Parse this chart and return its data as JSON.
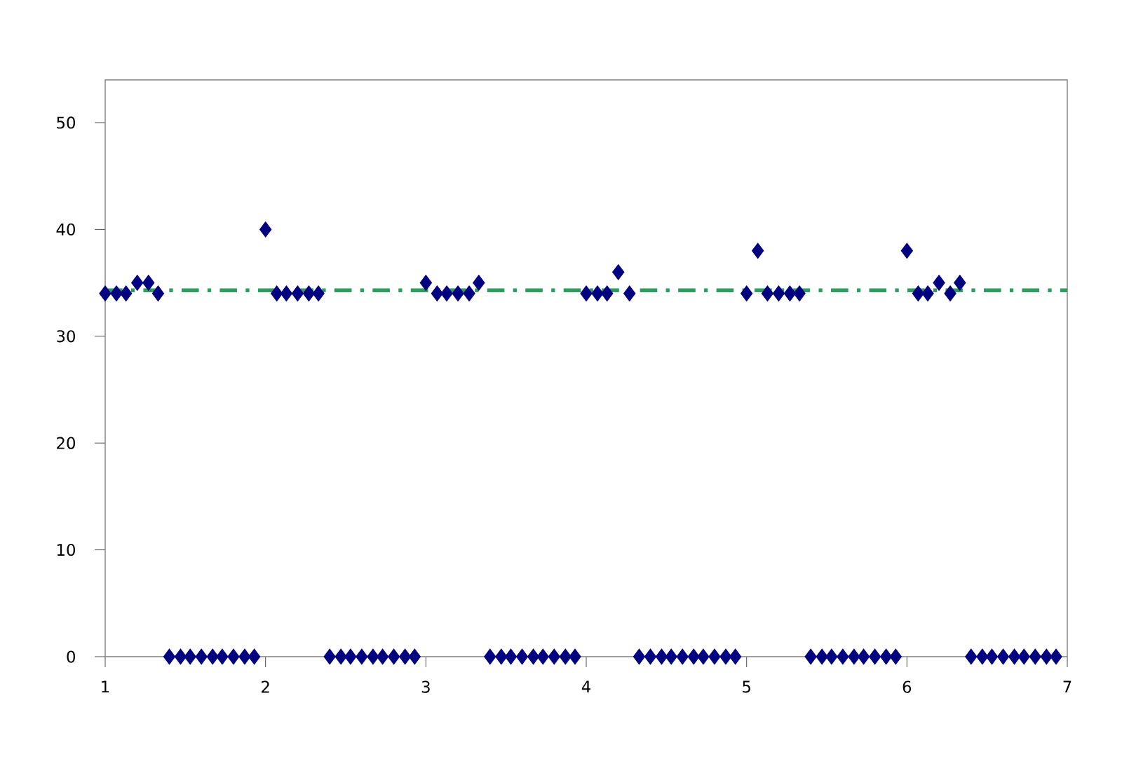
{
  "chart_data": {
    "type": "scatter",
    "series": [
      {
        "color": "#000080",
        "x": [
          1.0,
          1.07,
          1.13,
          1.2,
          1.27,
          1.33,
          1.4,
          1.47,
          1.53,
          1.6,
          1.67,
          1.73,
          1.8,
          1.87,
          1.93,
          2.0,
          2.07,
          2.13,
          2.2,
          2.27,
          2.33,
          2.4,
          2.47,
          2.53,
          2.6,
          2.67,
          2.73,
          2.8,
          2.87,
          2.93,
          3.0,
          3.07,
          3.13,
          3.2,
          3.27,
          3.33,
          3.4,
          3.47,
          3.53,
          3.6,
          3.67,
          3.73,
          3.8,
          3.87,
          3.93,
          4.0,
          4.07,
          4.13,
          4.2,
          4.27,
          4.33,
          4.4,
          4.47,
          4.53,
          4.6,
          4.67,
          4.73,
          4.8,
          4.87,
          4.93,
          5.0,
          5.07,
          5.13,
          5.2,
          5.27,
          5.33,
          5.4,
          5.47,
          5.53,
          5.6,
          5.67,
          5.73,
          5.8,
          5.87,
          5.93,
          6.0,
          6.07,
          6.13,
          6.2,
          6.27,
          6.33,
          6.4,
          6.47,
          6.53,
          6.6,
          6.67,
          6.73,
          6.8,
          6.87,
          6.93
        ],
        "values": [
          34,
          34,
          34,
          35,
          35,
          34,
          0,
          0,
          0,
          0,
          0,
          0,
          0,
          0,
          0,
          40,
          34,
          34,
          34,
          34,
          34,
          0,
          0,
          0,
          0,
          0,
          0,
          0,
          0,
          0,
          35,
          34,
          34,
          34,
          34,
          35,
          0,
          0,
          0,
          0,
          0,
          0,
          0,
          0,
          0,
          34,
          34,
          34,
          36,
          34,
          0,
          0,
          0,
          0,
          0,
          0,
          0,
          0,
          0,
          0,
          34,
          38,
          34,
          34,
          34,
          34,
          0,
          0,
          0,
          0,
          0,
          0,
          0,
          0,
          0,
          38,
          34,
          34,
          35,
          34,
          35,
          0,
          0,
          0,
          0,
          0,
          0,
          0,
          0,
          0
        ]
      }
    ],
    "xlim": [
      1,
      7
    ],
    "ylim": [
      0,
      54
    ],
    "xticks": [
      1,
      2,
      3,
      4,
      5,
      6,
      7
    ],
    "yticks": [
      0,
      10,
      20,
      30,
      40,
      50
    ],
    "marker": "diamond",
    "grid": false,
    "ref_lines": [
      {
        "axis": "y",
        "value": 34.3,
        "color": "#2e9b5f",
        "line_style": "dashdot"
      }
    ]
  }
}
